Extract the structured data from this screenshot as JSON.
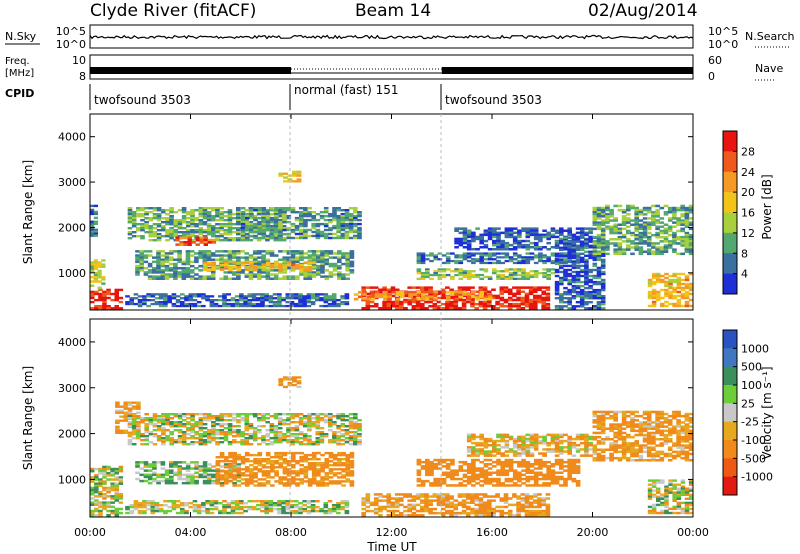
{
  "header": {
    "station": "Clyde River (fitACF)",
    "beam": "Beam 14",
    "date": "02/Aug/2014"
  },
  "nsky_panel": {
    "left_label": "N.Sky",
    "left_ticks": [
      "10^5",
      "10^0"
    ],
    "right_ticks": [
      "10^5",
      "10^0"
    ],
    "right_label": "N.Search"
  },
  "freq_panel": {
    "left_label_1": "Freq.",
    "left_label_2": "[MHz]",
    "left_ticks": [
      "10",
      "8"
    ],
    "right_ticks": [
      "60",
      "0"
    ],
    "right_label": "Nave"
  },
  "cpid": {
    "label": "CPID",
    "segments": [
      {
        "name": "twofsound 3503",
        "start_hour": 0,
        "end_hour": 8
      },
      {
        "name": "normal (fast) 151",
        "start_hour": 8,
        "end_hour": 14
      },
      {
        "name": "twofsound 3503",
        "start_hour": 14,
        "end_hour": 24
      }
    ]
  },
  "power_panel": {
    "ylabel": "Slant Range [km]",
    "colorbar_label": "Power [dB]",
    "colorbar_ticks": [
      "28",
      "24",
      "20",
      "16",
      "12",
      "8",
      "4"
    ]
  },
  "velocity_panel": {
    "ylabel": "Slant Range [km]",
    "colorbar_label": "Velocity [m s⁻¹]",
    "colorbar_ticks": [
      "1000",
      "500",
      "100",
      "25",
      "-25",
      "-100",
      "-500",
      "-1000"
    ]
  },
  "x_axis": {
    "ticks": [
      "00:00",
      "04:00",
      "08:00",
      "12:00",
      "16:00",
      "20:00",
      "00:00"
    ],
    "label": "Time UT"
  },
  "colors": {
    "power_scale": [
      "#e8140f",
      "#ef5a1c",
      "#f59a25",
      "#f3c31a",
      "#a8cf3c",
      "#52a86e",
      "#3a6fa0",
      "#1f2fd8"
    ],
    "velocity_scale": [
      "#2a52c0",
      "#3f78c0",
      "#3a8f5a",
      "#6ccc3a",
      "#c8c8c8",
      "#e6a81f",
      "#f08a1a",
      "#ee5a14",
      "#e31a12"
    ]
  },
  "chart_data": [
    {
      "type": "heatmap",
      "title": "Power",
      "x_range_hours": [
        0,
        24
      ],
      "y_range_km": [
        180,
        4500
      ],
      "yticks": [
        1000,
        2000,
        3000,
        4000
      ],
      "value_range_dB": [
        0,
        30
      ],
      "echo_regions": [
        {
          "t0": 0.0,
          "t1": 1.3,
          "r0": 200,
          "r1": 650,
          "dB": 28
        },
        {
          "t0": 0.0,
          "t1": 0.6,
          "r0": 650,
          "r1": 1300,
          "dB": 14
        },
        {
          "t0": 0.0,
          "t1": 0.3,
          "r0": 1800,
          "r1": 2500,
          "dB": 6
        },
        {
          "t0": 1.5,
          "t1": 7.8,
          "r0": 1700,
          "r1": 2450,
          "dB": 10
        },
        {
          "t0": 3.4,
          "t1": 5.0,
          "r0": 1600,
          "r1": 1800,
          "dB": 24
        },
        {
          "t0": 6.0,
          "t1": 10.8,
          "r0": 1750,
          "r1": 2450,
          "dB": 8
        },
        {
          "t0": 1.8,
          "t1": 10.5,
          "r0": 850,
          "r1": 1500,
          "dB": 9
        },
        {
          "t0": 4.5,
          "t1": 9.0,
          "r0": 1050,
          "r1": 1250,
          "dB": 18
        },
        {
          "t0": 1.4,
          "t1": 10.3,
          "r0": 250,
          "r1": 550,
          "dB": 5
        },
        {
          "t0": 10.8,
          "t1": 18.3,
          "r0": 200,
          "r1": 700,
          "dB": 28
        },
        {
          "t0": 10.5,
          "t1": 16.0,
          "r0": 400,
          "r1": 600,
          "dB": 20
        },
        {
          "t0": 13.0,
          "t1": 18.5,
          "r0": 850,
          "r1": 1100,
          "dB": 12
        },
        {
          "t0": 13.0,
          "t1": 19.5,
          "r0": 1200,
          "r1": 1450,
          "dB": 6
        },
        {
          "t0": 14.5,
          "t1": 20.0,
          "r0": 1500,
          "r1": 2000,
          "dB": 4
        },
        {
          "t0": 18.5,
          "t1": 20.5,
          "r0": 200,
          "r1": 1800,
          "dB": 4
        },
        {
          "t0": 20.0,
          "t1": 24.0,
          "r0": 1400,
          "r1": 2500,
          "dB": 10
        },
        {
          "t0": 22.2,
          "t1": 24.0,
          "r0": 250,
          "r1": 1000,
          "dB": 18
        },
        {
          "t0": 7.5,
          "t1": 8.4,
          "r0": 3000,
          "r1": 3250,
          "dB": 16
        }
      ]
    },
    {
      "type": "heatmap",
      "title": "Velocity",
      "x_range_hours": [
        0,
        24
      ],
      "y_range_km": [
        180,
        4500
      ],
      "yticks": [
        1000,
        2000,
        3000,
        4000
      ],
      "value_range_ms": [
        -1000,
        1000
      ],
      "echo_regions": [
        {
          "t0": 0.0,
          "t1": 1.3,
          "r0": 200,
          "r1": 1300,
          "v": 20
        },
        {
          "t0": 1.0,
          "t1": 2.0,
          "r0": 2000,
          "r1": 2700,
          "v": -150
        },
        {
          "t0": 1.5,
          "t1": 10.8,
          "r0": 1750,
          "r1": 2450,
          "v": 0
        },
        {
          "t0": 1.8,
          "t1": 6.0,
          "r0": 900,
          "r1": 1400,
          "v": 100
        },
        {
          "t0": 5.0,
          "t1": 10.5,
          "r0": 850,
          "r1": 1600,
          "v": -200
        },
        {
          "t0": 1.4,
          "t1": 10.3,
          "r0": 250,
          "r1": 550,
          "v": 30
        },
        {
          "t0": 10.8,
          "t1": 18.3,
          "r0": 200,
          "r1": 700,
          "v": -150
        },
        {
          "t0": 13.0,
          "t1": 19.5,
          "r0": 850,
          "r1": 1450,
          "v": -300
        },
        {
          "t0": 15.0,
          "t1": 20.0,
          "r0": 1500,
          "r1": 2000,
          "v": -80
        },
        {
          "t0": 20.0,
          "t1": 24.0,
          "r0": 1400,
          "r1": 2500,
          "v": -150
        },
        {
          "t0": 22.2,
          "t1": 24.0,
          "r0": 250,
          "r1": 1000,
          "v": 0
        },
        {
          "t0": 7.5,
          "t1": 8.4,
          "r0": 3000,
          "r1": 3250,
          "v": -150
        }
      ]
    }
  ]
}
